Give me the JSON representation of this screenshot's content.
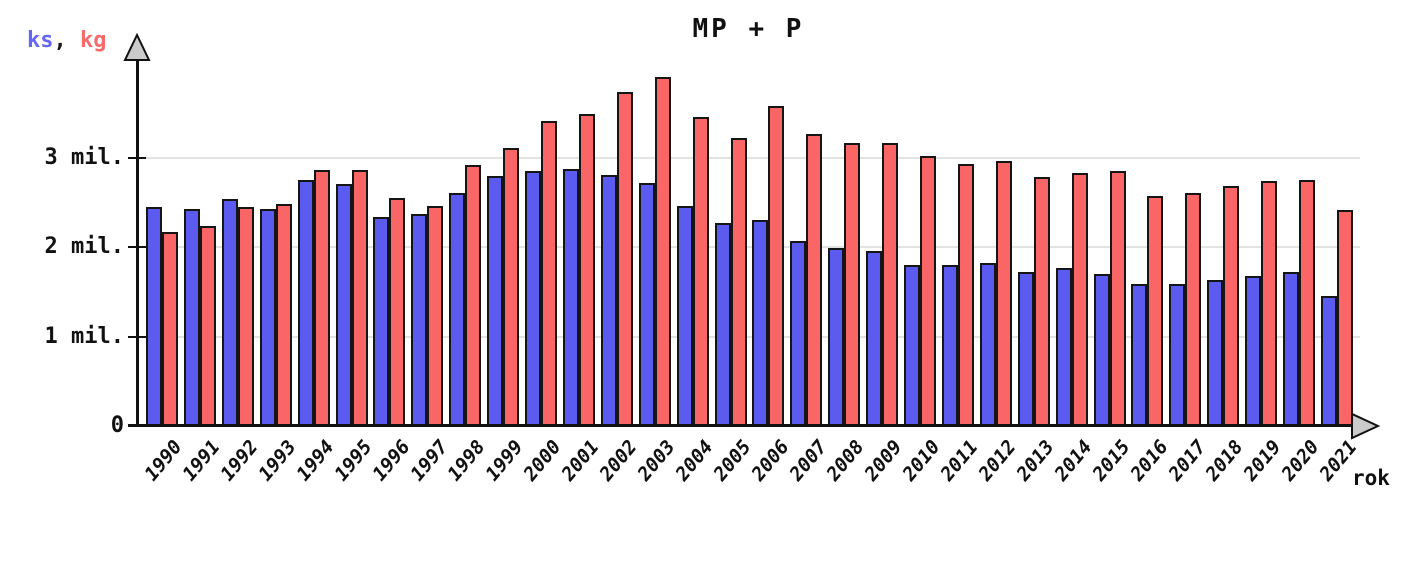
{
  "chart_data": {
    "type": "bar",
    "title": "MP + P",
    "xlabel": "rok",
    "ylabel_parts": {
      "ks_label": "ks",
      "comma": ",",
      "kg_label": "kg"
    },
    "unit": "mil.",
    "categories": [
      "1990",
      "1991",
      "1992",
      "1993",
      "1994",
      "1995",
      "1996",
      "1997",
      "1998",
      "1999",
      "2000",
      "2001",
      "2002",
      "2003",
      "2004",
      "2005",
      "2006",
      "2007",
      "2008",
      "2009",
      "2010",
      "2011",
      "2012",
      "2013",
      "2014",
      "2015",
      "2016",
      "2017",
      "2018",
      "2019",
      "2020",
      "2021"
    ],
    "series": [
      {
        "name": "ks",
        "color": "#5b5bf0",
        "values_mil": [
          2.45,
          2.43,
          2.54,
          2.43,
          2.75,
          2.71,
          2.34,
          2.37,
          2.61,
          2.8,
          2.86,
          2.88,
          2.81,
          2.72,
          2.46,
          2.27,
          2.31,
          2.07,
          1.99,
          1.96,
          1.8,
          1.8,
          1.83,
          1.73,
          1.77,
          1.7,
          1.59,
          1.59,
          1.64,
          1.68,
          1.72,
          1.46
        ]
      },
      {
        "name": "kg",
        "color": "#fa6565",
        "values_mil": [
          2.17,
          2.24,
          2.45,
          2.49,
          2.87,
          2.87,
          2.55,
          2.46,
          2.92,
          3.11,
          3.41,
          3.49,
          3.74,
          3.91,
          3.46,
          3.22,
          3.58,
          3.27,
          3.17,
          3.17,
          3.02,
          2.93,
          2.97,
          2.79,
          2.83,
          2.85,
          2.57,
          2.61,
          2.69,
          2.74,
          2.76,
          2.42
        ]
      }
    ],
    "yticks": [
      {
        "label": "0",
        "value_mil": 0
      },
      {
        "label": "1 mil.",
        "value_mil": 1
      },
      {
        "label": "2 mil.",
        "value_mil": 2
      },
      {
        "label": "3 mil.",
        "value_mil": 3
      }
    ],
    "ylim_mil": [
      0,
      4.2
    ],
    "grid": "horizontal",
    "legend_position": "top-left",
    "colors": {
      "bar_outline": "#151515",
      "grid_line": "#e3e3e3",
      "axis": "#111111",
      "arrow_fill": "#cbcbcb",
      "legend_ks": "#6666f5",
      "legend_kg": "#f96a6a"
    }
  }
}
